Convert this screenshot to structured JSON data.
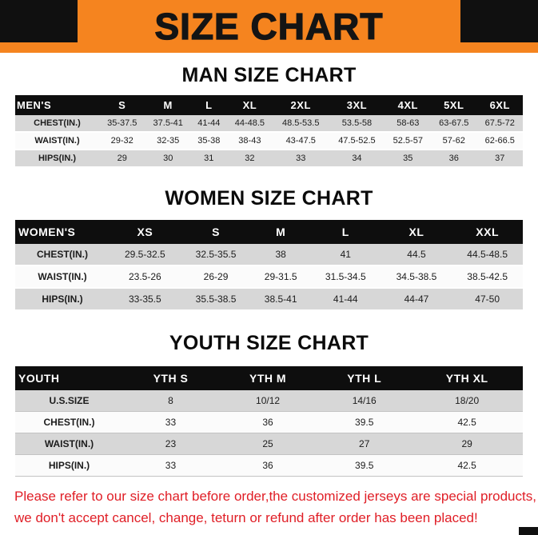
{
  "banner": {
    "title": "SIZE CHART",
    "bg_color": "#F5841F",
    "corner_color": "#101010"
  },
  "colors": {
    "table_header_bg": "#0e0e0e",
    "table_header_text": "#ffffff",
    "row_shade": "#d7d7d7",
    "footer_text": "#e01e26"
  },
  "sections": [
    {
      "id": "men",
      "title": "MAN SIZE CHART",
      "table": {
        "header": [
          "MEN'S",
          "S",
          "M",
          "L",
          "XL",
          "2XL",
          "3XL",
          "4XL",
          "5XL",
          "6XL"
        ],
        "rows": [
          [
            "CHEST(IN.)",
            "35-37.5",
            "37.5-41",
            "41-44",
            "44-48.5",
            "48.5-53.5",
            "53.5-58",
            "58-63",
            "63-67.5",
            "67.5-72"
          ],
          [
            "WAIST(IN.)",
            "29-32",
            "32-35",
            "35-38",
            "38-43",
            "43-47.5",
            "47.5-52.5",
            "52.5-57",
            "57-62",
            "62-66.5"
          ],
          [
            "HIPS(IN.)",
            "29",
            "30",
            "31",
            "32",
            "33",
            "34",
            "35",
            "36",
            "37"
          ]
        ]
      }
    },
    {
      "id": "women",
      "title": "WOMEN SIZE CHART",
      "table": {
        "header": [
          "WOMEN'S",
          "XS",
          "S",
          "M",
          "L",
          "XL",
          "XXL"
        ],
        "rows": [
          [
            "CHEST(IN.)",
            "29.5-32.5",
            "32.5-35.5",
            "38",
            "41",
            "44.5",
            "44.5-48.5"
          ],
          [
            "WAIST(IN.)",
            "23.5-26",
            "26-29",
            "29-31.5",
            "31.5-34.5",
            "34.5-38.5",
            "38.5-42.5"
          ],
          [
            "HIPS(IN.)",
            "33-35.5",
            "35.5-38.5",
            "38.5-41",
            "41-44",
            "44-47",
            "47-50"
          ]
        ]
      }
    },
    {
      "id": "youth",
      "title": "YOUTH SIZE CHART",
      "table": {
        "header": [
          "YOUTH",
          "YTH S",
          "YTH M",
          "YTH L",
          "YTH XL"
        ],
        "rows": [
          [
            "U.S.SIZE",
            "8",
            "10/12",
            "14/16",
            "18/20"
          ],
          [
            "CHEST(IN.)",
            "33",
            "36",
            "39.5",
            "42.5"
          ],
          [
            "WAIST(IN.)",
            "23",
            "25",
            "27",
            "29"
          ],
          [
            "HIPS(IN.)",
            "33",
            "36",
            "39.5",
            "42.5"
          ]
        ]
      }
    }
  ],
  "footer": {
    "lines": [
      "Please refer to our size chart before order,the customized jerseys are special products,",
      "we don't accept cancel, change, teturn or refund after order has been placed!"
    ]
  }
}
